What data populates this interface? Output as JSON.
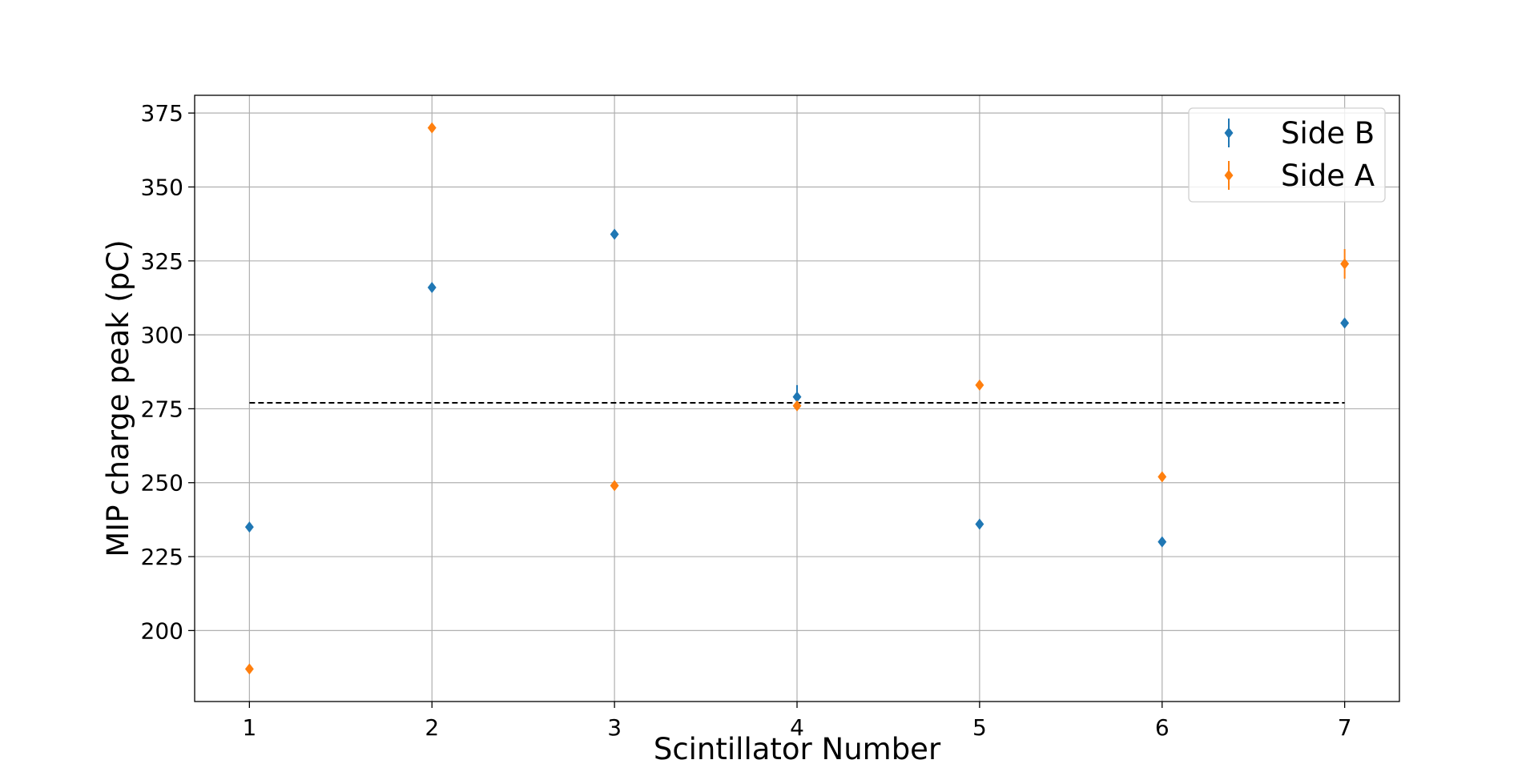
{
  "chart_data": {
    "type": "scatter",
    "xlabel": "Scintillator Number",
    "ylabel": "MIP charge peak (pC)",
    "xlim": [
      0.7,
      7.3
    ],
    "ylim": [
      176,
      381
    ],
    "x_ticks": [
      "1",
      "2",
      "3",
      "4",
      "5",
      "6",
      "7"
    ],
    "y_ticks": [
      "200",
      "225",
      "250",
      "275",
      "300",
      "325",
      "350",
      "375"
    ],
    "grid": true,
    "legend_position": "top-right",
    "marker": "diamond",
    "series": [
      {
        "name": "Side B",
        "color": "#1f77b4",
        "x": [
          1,
          2,
          3,
          4,
          5,
          6,
          7
        ],
        "y": [
          235,
          316,
          334,
          279,
          236,
          230,
          304
        ],
        "yerr": [
          1,
          1,
          1,
          4,
          1,
          1,
          1
        ]
      },
      {
        "name": "Side A",
        "color": "#ff7f0e",
        "x": [
          1,
          2,
          3,
          4,
          5,
          6,
          7
        ],
        "y": [
          187,
          370,
          249,
          276,
          283,
          252,
          324
        ],
        "yerr": [
          1,
          1,
          1,
          1,
          1,
          1,
          5
        ]
      }
    ],
    "reference_line": {
      "y": 277,
      "x_from": 1,
      "x_to": 7,
      "style": "dashed",
      "color": "#000000"
    }
  }
}
